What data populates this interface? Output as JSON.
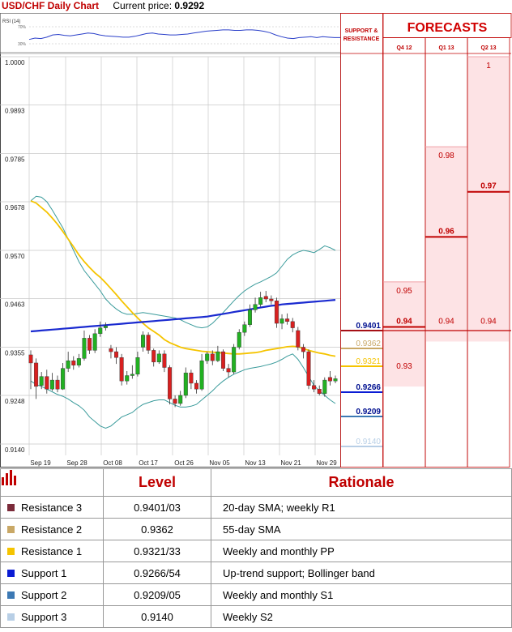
{
  "header": {
    "title": "USD/CHF Daily Chart",
    "price_label": "Current price:",
    "price_value": "0.9292"
  },
  "rsi": {
    "label": "RSI (14)",
    "levels": [
      "70%",
      "30%"
    ],
    "values": [
      52,
      55,
      54,
      57,
      62,
      63,
      61,
      60,
      62,
      64,
      66,
      65,
      62,
      60,
      59,
      58,
      57,
      57,
      59,
      62,
      65,
      66,
      64,
      63,
      62,
      62,
      63,
      64,
      66,
      68,
      70,
      71,
      72,
      73,
      73,
      72,
      72,
      73,
      73,
      72,
      70,
      67,
      62,
      58,
      55,
      54,
      56,
      57,
      58,
      56,
      58,
      57,
      56,
      56
    ]
  },
  "chart_data": {
    "type": "candlestick",
    "title": "USD/CHF Daily Chart",
    "y_ticks": [
      "1.0000",
      "0.9893",
      "0.9785",
      "0.9678",
      "0.9570",
      "0.9463",
      "0.9355",
      "0.9248",
      "0.9140"
    ],
    "x_ticks": [
      "Sep 19",
      "Sep 28",
      "Oct 08",
      "Oct 17",
      "Oct 26",
      "Nov 05",
      "Nov 13",
      "Nov 21",
      "Nov 29"
    ],
    "ylim": [
      0.914,
      1.0
    ],
    "candles": [
      {
        "o": 0.9338,
        "c": 0.932,
        "h": 0.9348,
        "l": 0.9262
      },
      {
        "o": 0.932,
        "c": 0.9268,
        "h": 0.933,
        "l": 0.924
      },
      {
        "o": 0.927,
        "c": 0.929,
        "h": 0.93,
        "l": 0.9262
      },
      {
        "o": 0.929,
        "c": 0.9262,
        "h": 0.9305,
        "l": 0.9252
      },
      {
        "o": 0.9262,
        "c": 0.9282,
        "h": 0.9298,
        "l": 0.9258
      },
      {
        "o": 0.9282,
        "c": 0.9262,
        "h": 0.9292,
        "l": 0.9255
      },
      {
        "o": 0.9262,
        "c": 0.9308,
        "h": 0.932,
        "l": 0.926
      },
      {
        "o": 0.9308,
        "c": 0.9325,
        "h": 0.9345,
        "l": 0.93
      },
      {
        "o": 0.9325,
        "c": 0.9315,
        "h": 0.9335,
        "l": 0.9305
      },
      {
        "o": 0.9315,
        "c": 0.933,
        "h": 0.934,
        "l": 0.931
      },
      {
        "o": 0.933,
        "c": 0.9375,
        "h": 0.9392,
        "l": 0.9325
      },
      {
        "o": 0.9375,
        "c": 0.9348,
        "h": 0.9382,
        "l": 0.934
      },
      {
        "o": 0.9348,
        "c": 0.9385,
        "h": 0.9395,
        "l": 0.9342
      },
      {
        "o": 0.9385,
        "c": 0.9398,
        "h": 0.9412,
        "l": 0.9378
      },
      {
        "o": 0.9398,
        "c": 0.9402,
        "h": 0.941,
        "l": 0.9392
      },
      {
        "o": 0.9352,
        "c": 0.9345,
        "h": 0.936,
        "l": 0.933
      },
      {
        "o": 0.9345,
        "c": 0.9332,
        "h": 0.9355,
        "l": 0.9318
      },
      {
        "o": 0.9332,
        "c": 0.928,
        "h": 0.934,
        "l": 0.927
      },
      {
        "o": 0.928,
        "c": 0.9292,
        "h": 0.9302,
        "l": 0.9272
      },
      {
        "o": 0.9292,
        "c": 0.9295,
        "h": 0.9315,
        "l": 0.9285
      },
      {
        "o": 0.9295,
        "c": 0.9332,
        "h": 0.9345,
        "l": 0.929
      },
      {
        "o": 0.9355,
        "c": 0.9382,
        "h": 0.939,
        "l": 0.9345
      },
      {
        "o": 0.9382,
        "c": 0.9348,
        "h": 0.9388,
        "l": 0.934
      },
      {
        "o": 0.9348,
        "c": 0.9322,
        "h": 0.9352,
        "l": 0.9312
      },
      {
        "o": 0.9322,
        "c": 0.934,
        "h": 0.9348,
        "l": 0.9318
      },
      {
        "o": 0.934,
        "c": 0.931,
        "h": 0.9348,
        "l": 0.93
      },
      {
        "o": 0.931,
        "c": 0.924,
        "h": 0.9315,
        "l": 0.9228
      },
      {
        "o": 0.924,
        "c": 0.923,
        "h": 0.9248,
        "l": 0.9222
      },
      {
        "o": 0.923,
        "c": 0.9248,
        "h": 0.9258,
        "l": 0.9225
      },
      {
        "o": 0.9248,
        "c": 0.9298,
        "h": 0.931,
        "l": 0.9242
      },
      {
        "o": 0.9298,
        "c": 0.9275,
        "h": 0.9305,
        "l": 0.9262
      },
      {
        "o": 0.9275,
        "c": 0.9262,
        "h": 0.9282,
        "l": 0.9252
      },
      {
        "o": 0.9262,
        "c": 0.9325,
        "h": 0.934,
        "l": 0.9258
      },
      {
        "o": 0.9325,
        "c": 0.934,
        "h": 0.9345,
        "l": 0.9318
      },
      {
        "o": 0.934,
        "c": 0.9325,
        "h": 0.9348,
        "l": 0.9315
      },
      {
        "o": 0.9325,
        "c": 0.9345,
        "h": 0.9358,
        "l": 0.9322
      },
      {
        "o": 0.9345,
        "c": 0.9308,
        "h": 0.935,
        "l": 0.9302
      },
      {
        "o": 0.9308,
        "c": 0.93,
        "h": 0.9318,
        "l": 0.9288
      },
      {
        "o": 0.93,
        "c": 0.9355,
        "h": 0.9362,
        "l": 0.9295
      },
      {
        "o": 0.9355,
        "c": 0.9388,
        "h": 0.9395,
        "l": 0.935
      },
      {
        "o": 0.9388,
        "c": 0.9405,
        "h": 0.9412,
        "l": 0.938
      },
      {
        "o": 0.9405,
        "c": 0.9438,
        "h": 0.945,
        "l": 0.94
      },
      {
        "o": 0.9438,
        "c": 0.945,
        "h": 0.9465,
        "l": 0.9432
      },
      {
        "o": 0.945,
        "c": 0.9465,
        "h": 0.9478,
        "l": 0.9445
      },
      {
        "o": 0.9468,
        "c": 0.9462,
        "h": 0.948,
        "l": 0.9455
      },
      {
        "o": 0.9462,
        "c": 0.9458,
        "h": 0.947,
        "l": 0.945
      },
      {
        "o": 0.9458,
        "c": 0.9408,
        "h": 0.9465,
        "l": 0.9398
      },
      {
        "o": 0.9408,
        "c": 0.9418,
        "h": 0.9428,
        "l": 0.9395
      },
      {
        "o": 0.9418,
        "c": 0.9412,
        "h": 0.943,
        "l": 0.9405
      },
      {
        "o": 0.9412,
        "c": 0.9398,
        "h": 0.942,
        "l": 0.9388
      },
      {
        "o": 0.9392,
        "c": 0.9355,
        "h": 0.94,
        "l": 0.9348
      },
      {
        "o": 0.9355,
        "c": 0.9345,
        "h": 0.9362,
        "l": 0.933
      },
      {
        "o": 0.9345,
        "c": 0.927,
        "h": 0.935,
        "l": 0.9262
      },
      {
        "o": 0.927,
        "c": 0.9262,
        "h": 0.9282,
        "l": 0.9255
      },
      {
        "o": 0.9262,
        "c": 0.9252,
        "h": 0.927,
        "l": 0.9248
      },
      {
        "o": 0.9252,
        "c": 0.9282,
        "h": 0.9288,
        "l": 0.9245
      },
      {
        "o": 0.9288,
        "c": 0.928,
        "h": 0.9302,
        "l": 0.927
      },
      {
        "o": 0.928,
        "c": 0.9285,
        "h": 0.9292,
        "l": 0.9275
      }
    ],
    "sma20": [
      0.968,
      0.9675,
      0.9665,
      0.9655,
      0.9642,
      0.9628,
      0.9612,
      0.9595,
      0.9578,
      0.956,
      0.9545,
      0.9532,
      0.952,
      0.951,
      0.9498,
      0.9485,
      0.9472,
      0.9458,
      0.9445,
      0.9432,
      0.942,
      0.9408,
      0.9398,
      0.939,
      0.9382,
      0.9372,
      0.9365,
      0.936,
      0.9355,
      0.9352,
      0.935,
      0.9348,
      0.9346,
      0.9345,
      0.9344,
      0.9343,
      0.9342,
      0.9341,
      0.934,
      0.934,
      0.9341,
      0.9342,
      0.9343,
      0.9345,
      0.9348,
      0.935,
      0.9352,
      0.9354,
      0.9356,
      0.9357,
      0.9356,
      0.9352,
      0.9348,
      0.9345,
      0.9342,
      0.934,
      0.9337,
      0.9335
    ],
    "sma55": [
      0.939,
      0.9391,
      0.9392,
      0.9393,
      0.9394,
      0.9395,
      0.9396,
      0.9397,
      0.9398,
      0.9399,
      0.94,
      0.9401,
      0.9402,
      0.9403,
      0.9404,
      0.9405,
      0.9406,
      0.9407,
      0.9408,
      0.9409,
      0.941,
      0.9411,
      0.9412,
      0.9413,
      0.9414,
      0.9415,
      0.9416,
      0.9417,
      0.9418,
      0.9419,
      0.942,
      0.9421,
      0.9422,
      0.9423,
      0.9425,
      0.9427,
      0.9429,
      0.9431,
      0.9433,
      0.9435,
      0.9437,
      0.9439,
      0.9441,
      0.9443,
      0.9445,
      0.9447,
      0.9448,
      0.945,
      0.9451,
      0.9452,
      0.9453,
      0.9454,
      0.9455,
      0.9456,
      0.9457,
      0.9458,
      0.9459,
      0.946
    ],
    "bb_upper": [
      0.968,
      0.969,
      0.9688,
      0.9678,
      0.966,
      0.964,
      0.962,
      0.9595,
      0.957,
      0.9545,
      0.9525,
      0.951,
      0.9495,
      0.948,
      0.9462,
      0.945,
      0.944,
      0.9432,
      0.9428,
      0.9428,
      0.943,
      0.9432,
      0.943,
      0.9428,
      0.9426,
      0.9424,
      0.9422,
      0.942,
      0.9416,
      0.941,
      0.9405,
      0.94,
      0.9398,
      0.94,
      0.9408,
      0.942,
      0.9432,
      0.9445,
      0.9458,
      0.947,
      0.948,
      0.9488,
      0.9495,
      0.95,
      0.9506,
      0.9512,
      0.952,
      0.9535,
      0.955,
      0.956,
      0.9566,
      0.957,
      0.9568,
      0.9565,
      0.9572,
      0.958,
      0.9576,
      0.957
    ],
    "bb_lower": [
      0.928,
      0.9272,
      0.9268,
      0.9262,
      0.9256,
      0.925,
      0.9246,
      0.924,
      0.9232,
      0.9225,
      0.9215,
      0.92,
      0.919,
      0.918,
      0.9175,
      0.918,
      0.919,
      0.92,
      0.9205,
      0.921,
      0.922,
      0.9228,
      0.9232,
      0.9236,
      0.9238,
      0.9238,
      0.9232,
      0.9226,
      0.9222,
      0.9222,
      0.9224,
      0.9228,
      0.9238,
      0.9248,
      0.9258,
      0.927,
      0.928,
      0.9288,
      0.9295,
      0.93,
      0.9305,
      0.9308,
      0.931,
      0.9312,
      0.9315,
      0.9318,
      0.9322,
      0.9328,
      0.9335,
      0.934,
      0.9328,
      0.931,
      0.929,
      0.927,
      0.9258,
      0.9248,
      0.9238,
      0.923
    ],
    "support_resistance": [
      {
        "value": "0.9401",
        "color": "#7b2b3a"
      },
      {
        "value": "0.9362",
        "color": "#c9a866"
      },
      {
        "value": "0.9321",
        "color": "#f5c400"
      },
      {
        "value": "0.9266",
        "color": "#0a1cd4"
      },
      {
        "value": "0.9209",
        "color": "#3c79b4"
      },
      {
        "value": "0.9140",
        "color": "#b8cfe6"
      }
    ]
  },
  "forecasts": {
    "title": "FORECASTS",
    "sr_label": "SUPPORT & RESISTANCE",
    "columns": [
      {
        "label": "Q4 12",
        "values": [
          "0.95",
          "0.94",
          "0.93"
        ],
        "bold": "0.94"
      },
      {
        "label": "Q1 13",
        "values": [
          "0.98",
          "0.96",
          "0.94"
        ],
        "bold": "0.96"
      },
      {
        "label": "Q2 13",
        "values": [
          "1",
          "0.97",
          "0.94"
        ],
        "bold": "0.97"
      }
    ]
  },
  "table": {
    "headers": [
      "Level",
      "Rationale"
    ],
    "rows": [
      {
        "name": "Resistance 3",
        "level": "0.9401/03",
        "rationale": "20-day SMA; weekly R1",
        "color": "#7b2b3a"
      },
      {
        "name": "Resistance 2",
        "level": "0.9362",
        "rationale": "55-day SMA",
        "color": "#c9a866"
      },
      {
        "name": "Resistance 1",
        "level": "0.9321/33",
        "rationale": "Weekly and monthly PP",
        "color": "#f5c400"
      },
      {
        "name": "Support 1",
        "level": "0.9266/54",
        "rationale": "Up-trend support; Bollinger band",
        "color": "#0a1cd4"
      },
      {
        "name": "Support 2",
        "level": "0.9209/05",
        "rationale": "Weekly and monthly S1",
        "color": "#3c79b4"
      },
      {
        "name": "Support 3",
        "level": "0.9140",
        "rationale": "Weekly S2",
        "color": "#b8cfe6"
      }
    ]
  }
}
